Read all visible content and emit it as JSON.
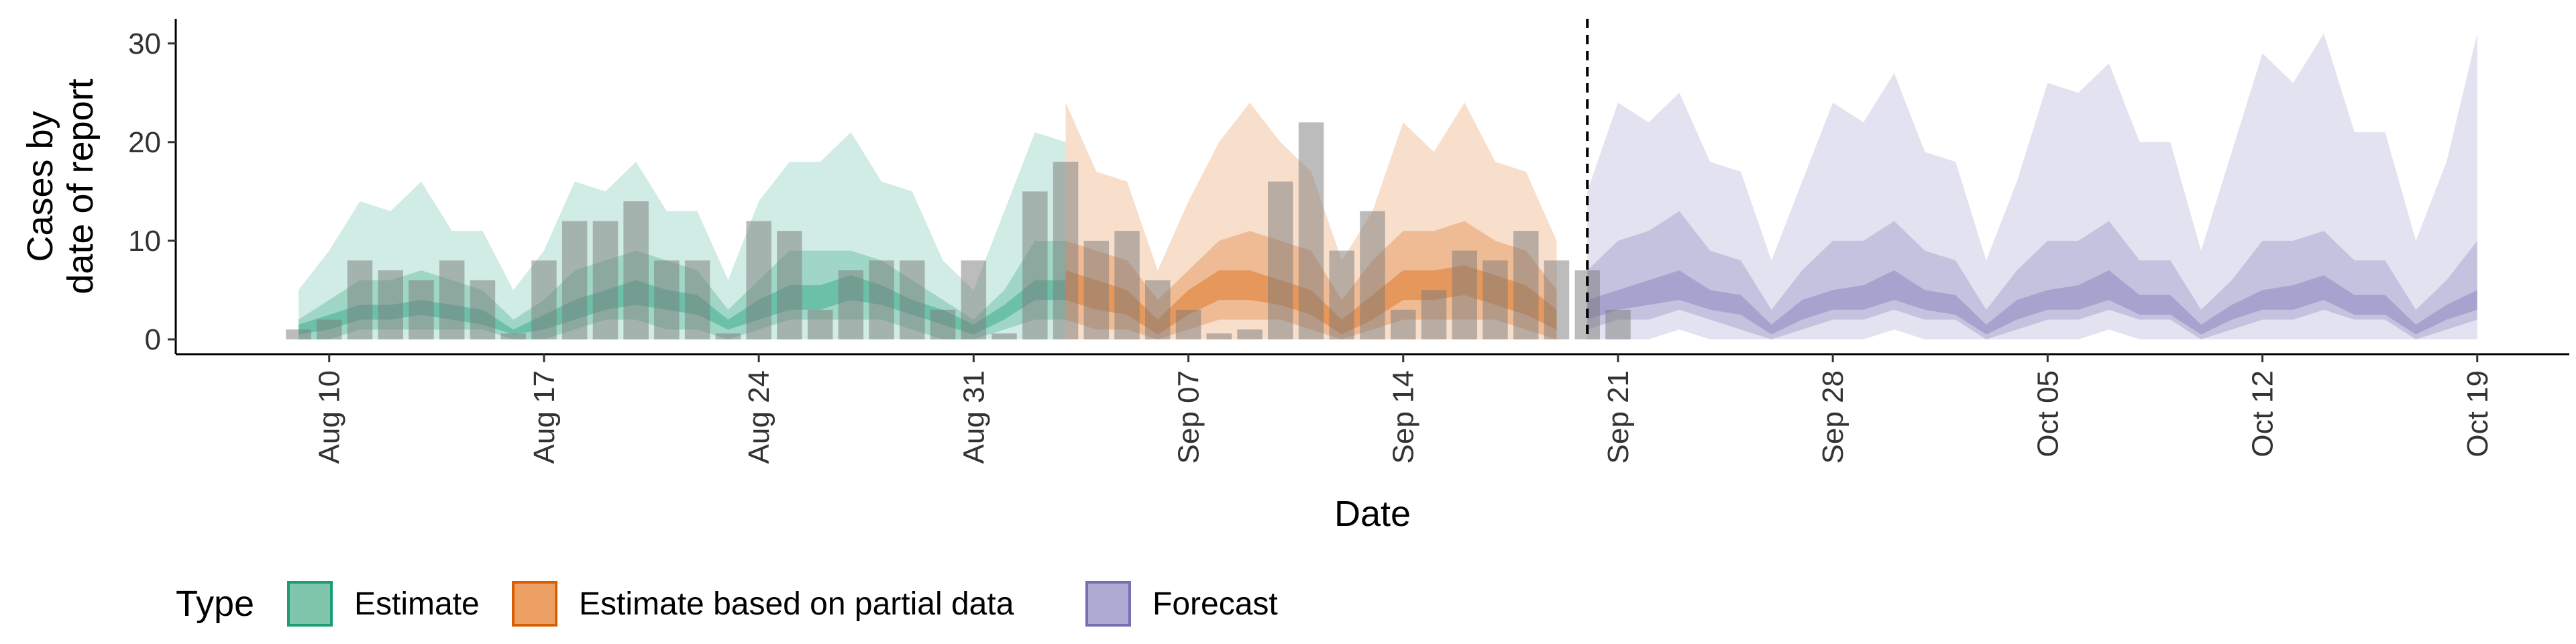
{
  "chart_data": {
    "type": "area",
    "xlabel": "Date",
    "ylabel_lines": [
      "Cases by",
      "date of report"
    ],
    "ylim": [
      -1.5,
      32.5
    ],
    "yticks": [
      0,
      10,
      20,
      30
    ],
    "x_range": [
      "2024-08-05",
      "2024-10-22"
    ],
    "date_ticks": [
      {
        "date": "2024-08-10",
        "label": "Aug 10"
      },
      {
        "date": "2024-08-17",
        "label": "Aug 17"
      },
      {
        "date": "2024-08-24",
        "label": "Aug 24"
      },
      {
        "date": "2024-08-31",
        "label": "Aug 31"
      },
      {
        "date": "2024-09-07",
        "label": "Sep 07"
      },
      {
        "date": "2024-09-14",
        "label": "Sep 14"
      },
      {
        "date": "2024-09-21",
        "label": "Sep 21"
      },
      {
        "date": "2024-09-28",
        "label": "Sep 28"
      },
      {
        "date": "2024-10-05",
        "label": "Oct 05"
      },
      {
        "date": "2024-10-12",
        "label": "Oct 12"
      },
      {
        "date": "2024-10-19",
        "label": "Oct 19"
      }
    ],
    "forecast_start_line": "2024-09-20",
    "legend": {
      "title": "Type",
      "position": "bottom",
      "entries": [
        {
          "label": "Estimate",
          "fill": "#7fc6ad",
          "stroke": "#1b9e77"
        },
        {
          "label": "Estimate based on partial data",
          "fill": "#eda064",
          "stroke": "#d95f02"
        },
        {
          "label": "Forecast",
          "fill": "#aeaad4",
          "stroke": "#7570b3"
        }
      ]
    },
    "reported_cases": {
      "start": "2024-08-09",
      "values": [
        1,
        2,
        8,
        7,
        6,
        8,
        6,
        0,
        8,
        12,
        12,
        14,
        8,
        8,
        0,
        12,
        11,
        3,
        7,
        8,
        8,
        3,
        8,
        0,
        15,
        18,
        10,
        11,
        6,
        3,
        0,
        1,
        16,
        22,
        9,
        13,
        3,
        5,
        9,
        8,
        11,
        8,
        7,
        3
      ]
    },
    "series": [
      {
        "name": "Estimate",
        "color": "#1b9e77",
        "start": "2024-08-09",
        "upper90": [
          5,
          9,
          14,
          13,
          16,
          11,
          11,
          5,
          9,
          16,
          15,
          18,
          13,
          13,
          6,
          14,
          18,
          18,
          21,
          16,
          15,
          8,
          5,
          13,
          21,
          20
        ],
        "lower90": [
          0,
          0,
          0,
          0,
          0,
          0,
          0,
          0,
          0,
          0,
          0,
          0,
          0,
          0,
          0,
          0,
          0,
          0,
          0,
          0,
          0,
          0,
          0,
          0,
          0,
          0
        ],
        "upper50": [
          2,
          4,
          6,
          6,
          7,
          6,
          5,
          2,
          4,
          7,
          8,
          9,
          8,
          7,
          3,
          6,
          9,
          9,
          9,
          8,
          6,
          4,
          2,
          5,
          10,
          10
        ],
        "lower50": [
          0,
          0,
          1,
          1,
          1,
          1,
          1,
          0,
          0,
          1,
          2,
          2,
          1,
          1,
          0,
          1,
          2,
          2,
          2,
          2,
          1,
          0,
          0,
          1,
          2,
          2
        ],
        "upper20": [
          1.5,
          2.5,
          3.5,
          3.5,
          4,
          3.5,
          3,
          1,
          2.5,
          4,
          5,
          6,
          5,
          4.5,
          2,
          4,
          5.5,
          5.5,
          6.5,
          5.5,
          4,
          3,
          1.5,
          3.5,
          6,
          6
        ],
        "lower20": [
          0.5,
          1,
          2,
          2,
          2.5,
          2,
          1.5,
          0.5,
          1,
          2,
          3,
          3.5,
          3,
          2.5,
          1,
          2,
          3,
          3,
          4,
          3.5,
          2.5,
          1.5,
          0.5,
          2,
          4,
          4
        ]
      },
      {
        "name": "Estimate based on partial data",
        "color": "#d95f02",
        "start": "2024-09-03",
        "upper90": [
          24,
          17,
          16,
          7,
          14,
          20,
          24,
          20,
          17,
          8,
          13,
          22,
          19,
          24,
          18,
          17,
          10
        ],
        "lower90": [
          0,
          0,
          0,
          0,
          0,
          0,
          0,
          0,
          0,
          0,
          0,
          0,
          0,
          0,
          0,
          0,
          0
        ],
        "upper50": [
          10,
          9,
          8,
          4,
          7,
          10,
          11,
          10,
          9,
          4,
          8,
          11,
          11,
          12,
          10,
          9,
          5
        ],
        "lower50": [
          2,
          1,
          1,
          0,
          1,
          2,
          2,
          2,
          1,
          0,
          1,
          2,
          2,
          2,
          2,
          1,
          0
        ],
        "upper20": [
          7,
          6,
          5,
          2,
          5,
          7,
          7,
          6,
          5,
          2,
          4.5,
          7,
          7,
          7.5,
          6.5,
          5.5,
          3
        ],
        "lower20": [
          4,
          3,
          2.5,
          0.5,
          2.5,
          4,
          4,
          3.5,
          2.5,
          0.5,
          2,
          4,
          4,
          4.5,
          3.5,
          2.5,
          1
        ]
      },
      {
        "name": "Forecast",
        "color": "#7570b3",
        "start": "2024-09-20",
        "upper90": [
          15,
          24,
          22,
          25,
          18,
          17,
          8,
          16,
          24,
          22,
          27,
          19,
          18,
          8,
          16,
          26,
          25,
          28,
          20,
          20,
          9,
          19,
          29,
          26,
          31,
          21,
          21,
          10,
          18,
          31
        ],
        "lower90": [
          0,
          0,
          0,
          1,
          0,
          0,
          0,
          0,
          0,
          0,
          1,
          0,
          0,
          0,
          0,
          0,
          0,
          1,
          0,
          0,
          0,
          0,
          0,
          0,
          0,
          0,
          0,
          0,
          0,
          0
        ],
        "upper50": [
          7,
          10,
          11,
          13,
          9,
          8,
          3,
          7,
          10,
          10,
          12,
          9,
          8,
          3,
          7,
          10,
          10,
          12,
          8,
          8,
          3,
          6,
          10,
          10,
          11,
          8,
          8,
          3,
          6,
          10
        ],
        "lower50": [
          1,
          2,
          2,
          3,
          2,
          1,
          0,
          1,
          2,
          2,
          3,
          2,
          2,
          0,
          1,
          2,
          2,
          3,
          2,
          2,
          0,
          1,
          2,
          2,
          3,
          2,
          2,
          0,
          1,
          2
        ],
        "upper20": [
          4,
          5,
          6,
          7,
          5,
          4.5,
          1.5,
          4,
          5,
          5.5,
          7,
          5,
          4.5,
          1.5,
          4,
          5,
          5.5,
          7,
          4.5,
          4.5,
          1.5,
          3.5,
          5,
          5.5,
          6.5,
          4.5,
          4.5,
          1.5,
          3.5,
          5
        ],
        "lower20": [
          2,
          3,
          3.5,
          4,
          3,
          2.5,
          0.5,
          2,
          3,
          3,
          4,
          3,
          2.5,
          0.5,
          2,
          3,
          3,
          4,
          2.5,
          2.5,
          0.5,
          2,
          3,
          3,
          4,
          2.5,
          2.5,
          0.5,
          2,
          3
        ]
      }
    ]
  }
}
